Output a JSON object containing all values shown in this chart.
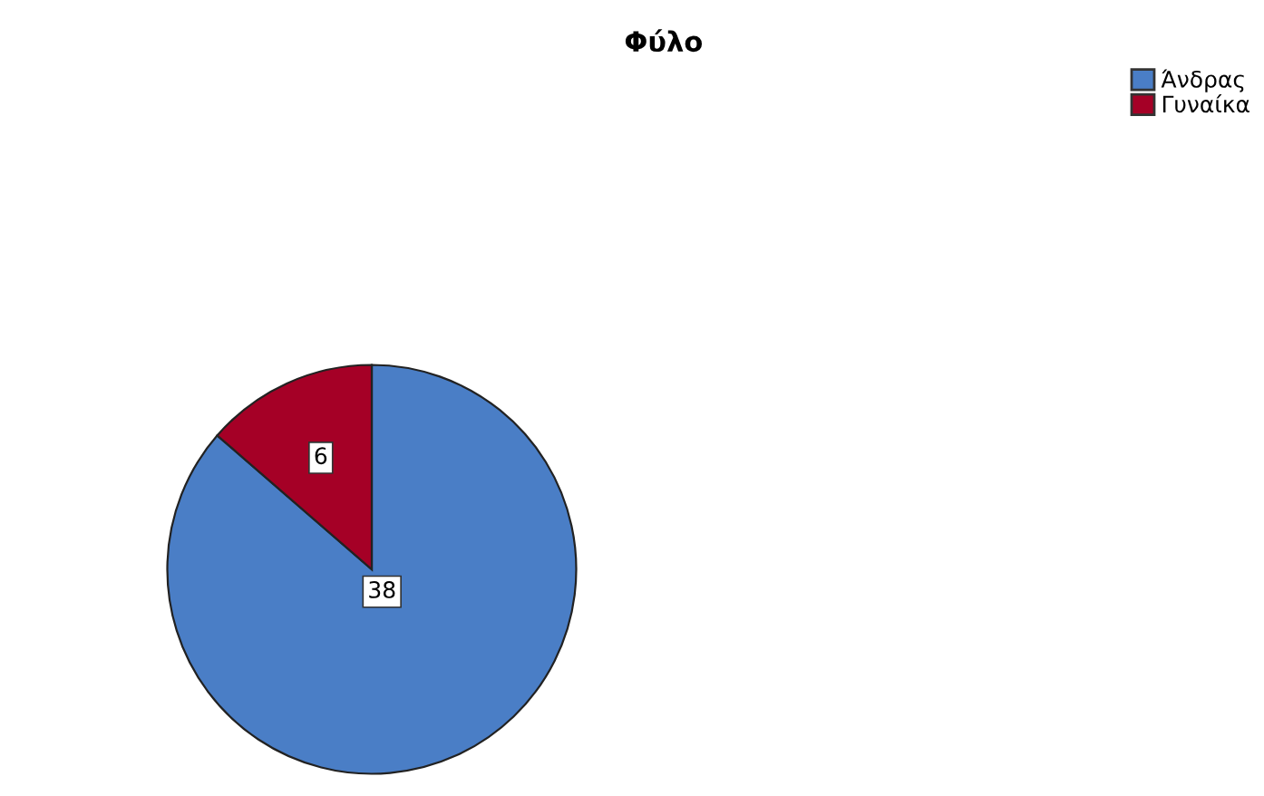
{
  "chart_data": {
    "type": "pie",
    "title": "Φύλο",
    "categories": [
      "Άνδρας",
      "Γυναίκα"
    ],
    "values": [
      38,
      6
    ],
    "colors": [
      "#4a7ec6",
      "#a50026"
    ],
    "data_labels": true,
    "legend": "top right"
  }
}
